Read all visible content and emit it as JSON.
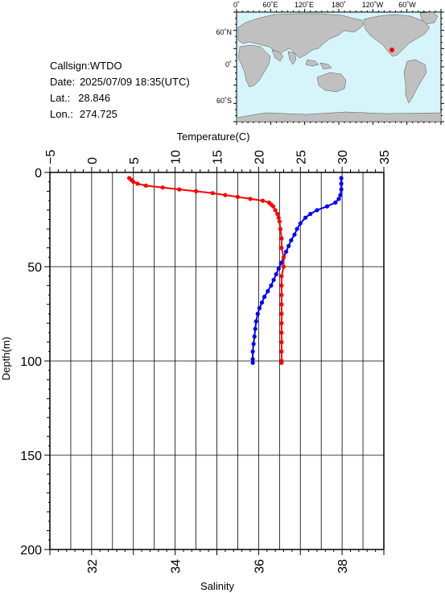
{
  "station": {
    "callsign_label": "Callsign:",
    "callsign": "WTDO",
    "date_label": "Date:",
    "date": "2025/07/09 18:35(UTC)",
    "lat_label": "Lat.:",
    "lat": "28.846",
    "lon_label": "Lon.:",
    "lon": "274.725"
  },
  "map": {
    "lon_labels": [
      "0˚",
      "60˚E",
      "120˚E",
      "180˚",
      "120˚W",
      "60˚W"
    ],
    "lat_labels": [
      "60˚N",
      "0˚",
      "60˚S"
    ],
    "ocean_color": "#d6f5fb",
    "land_color": "#c0c0c0",
    "marker_color": "#ff0000"
  },
  "chart_data": {
    "type": "line",
    "xlabel_top": "Temperature(C)",
    "xlabel_bottom": "Salinity",
    "ylabel": "Depth(m)",
    "temperature_ticks": [
      "−5",
      "0",
      "5",
      "10",
      "15",
      "20",
      "25",
      "30",
      "35"
    ],
    "temperature_range": [
      -5,
      35
    ],
    "salinity_ticks": [
      "32",
      "34",
      "36",
      "38"
    ],
    "salinity_range": [
      31,
      39
    ],
    "depth_ticks": [
      "0",
      "50",
      "100",
      "150",
      "200"
    ],
    "depth_range": [
      0,
      200
    ],
    "grid": true,
    "series": [
      {
        "color": "#0000ff",
        "axis": "temperature",
        "points": [
          [
            29.9,
            3
          ],
          [
            29.9,
            6
          ],
          [
            29.9,
            9
          ],
          [
            29.8,
            12
          ],
          [
            29.6,
            14
          ],
          [
            29.2,
            16
          ],
          [
            28.2,
            18
          ],
          [
            27.0,
            20
          ],
          [
            26.2,
            22
          ],
          [
            25.6,
            24
          ],
          [
            25.0,
            27
          ],
          [
            24.6,
            30
          ],
          [
            24.3,
            33
          ],
          [
            23.9,
            36
          ],
          [
            23.6,
            39
          ],
          [
            23.3,
            42
          ],
          [
            23.0,
            45
          ],
          [
            22.7,
            48
          ],
          [
            22.4,
            51
          ],
          [
            22.1,
            54
          ],
          [
            21.8,
            57
          ],
          [
            21.5,
            60
          ],
          [
            21.1,
            63
          ],
          [
            20.7,
            66
          ],
          [
            20.4,
            69
          ],
          [
            20.1,
            72
          ],
          [
            19.9,
            75
          ],
          [
            19.7,
            79
          ],
          [
            19.6,
            83
          ],
          [
            19.5,
            87
          ],
          [
            19.4,
            91
          ],
          [
            19.3,
            95
          ],
          [
            19.3,
            99
          ],
          [
            19.3,
            101
          ]
        ]
      },
      {
        "color": "#ff0000",
        "axis": "salinity",
        "points": [
          [
            32.9,
            3
          ],
          [
            32.95,
            4
          ],
          [
            33.0,
            5
          ],
          [
            33.1,
            6
          ],
          [
            33.3,
            7
          ],
          [
            33.7,
            8
          ],
          [
            34.1,
            9
          ],
          [
            34.5,
            10
          ],
          [
            34.9,
            11
          ],
          [
            35.2,
            12
          ],
          [
            35.5,
            13
          ],
          [
            35.8,
            14
          ],
          [
            36.1,
            15
          ],
          [
            36.25,
            16
          ],
          [
            36.3,
            17
          ],
          [
            36.35,
            18
          ],
          [
            36.4,
            20
          ],
          [
            36.45,
            22
          ],
          [
            36.48,
            24
          ],
          [
            36.5,
            26
          ],
          [
            36.52,
            30
          ],
          [
            36.55,
            35
          ],
          [
            36.55,
            40
          ],
          [
            36.6,
            45
          ],
          [
            36.6,
            50
          ],
          [
            36.55,
            55
          ],
          [
            36.55,
            60
          ],
          [
            36.55,
            65
          ],
          [
            36.55,
            70
          ],
          [
            36.55,
            75
          ],
          [
            36.55,
            80
          ],
          [
            36.55,
            85
          ],
          [
            36.55,
            90
          ],
          [
            36.55,
            95
          ],
          [
            36.55,
            100
          ],
          [
            36.55,
            101
          ]
        ]
      }
    ]
  }
}
